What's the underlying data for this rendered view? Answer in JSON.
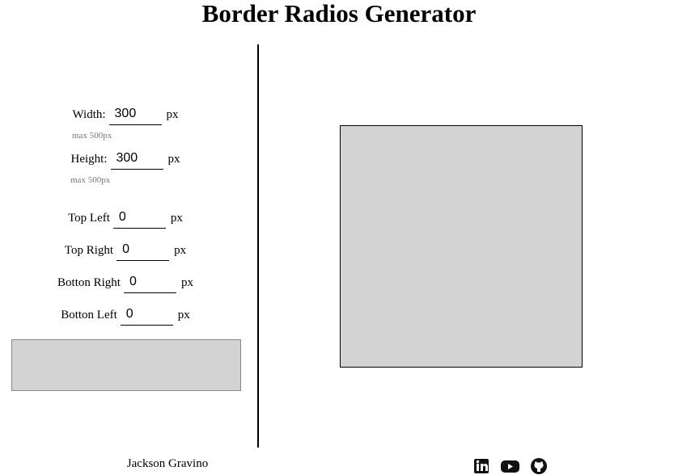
{
  "header": {
    "title": "Border Radios Generator"
  },
  "fields": [
    {
      "label": "Width:",
      "value": 300,
      "unit": "px",
      "hint": "max 500px"
    },
    {
      "label": "Height:",
      "value": 300,
      "unit": "px",
      "hint": "max 500px"
    },
    {
      "label": "Top Left",
      "value": 0,
      "unit": "px"
    },
    {
      "label": "Top Right",
      "value": 0,
      "unit": "px"
    },
    {
      "label": "Botton Right",
      "value": 0,
      "unit": "px"
    },
    {
      "label": "Botton Left",
      "value": 0,
      "unit": "px"
    }
  ],
  "footer": {
    "author": "Jackson Gravino"
  }
}
